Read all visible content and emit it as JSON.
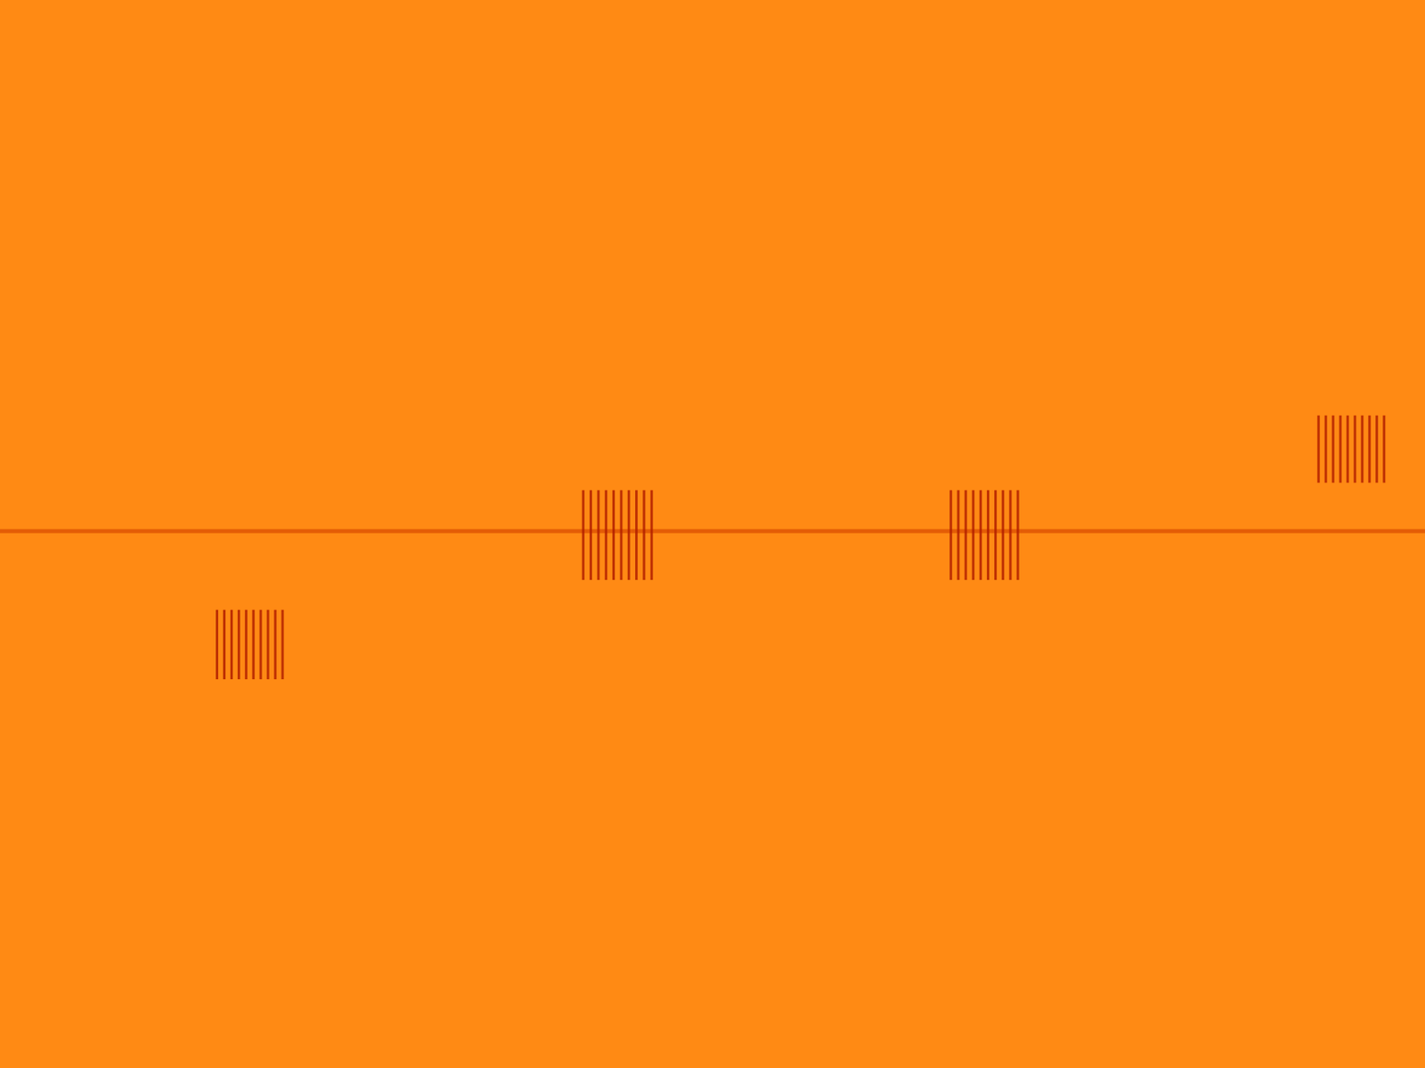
{
  "chart_data": {
    "type": "spectrogram",
    "tick_labels": false,
    "grid": false,
    "xlim": [
      0,
      100
    ],
    "ylim": [
      0,
      100
    ],
    "color": "#ff8a14",
    "tone": {
      "frequency": 50.3,
      "color": "#d94a00"
    },
    "bursts": [
      {
        "start": 15.2,
        "end": 19.8,
        "low": 36.4,
        "high": 42.9,
        "pulses": 10,
        "color": "#b32000"
      },
      {
        "start": 40.9,
        "end": 45.7,
        "low": 45.7,
        "high": 54.1,
        "pulses": 10,
        "color": "#b32000"
      },
      {
        "start": 66.7,
        "end": 71.4,
        "low": 45.7,
        "high": 54.1,
        "pulses": 10,
        "color": "#b32000"
      },
      {
        "start": 92.5,
        "end": 97.1,
        "low": 54.8,
        "high": 61.1,
        "pulses": 10,
        "color": "#b32000"
      }
    ]
  }
}
